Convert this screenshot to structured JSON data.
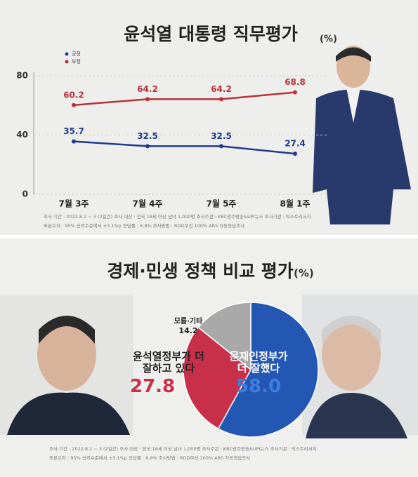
{
  "chart_data": [
    {
      "type": "line",
      "title": "윤석열 대통령 직무평가",
      "unit": "(%)",
      "categories": [
        "7월 3주",
        "7월 4주",
        "7월 5주",
        "8월 1주"
      ],
      "series": [
        {
          "name": "긍정",
          "color": "#1f3a8f",
          "values": [
            35.7,
            32.5,
            32.5,
            27.4
          ]
        },
        {
          "name": "부정",
          "color": "#b8323a",
          "values": [
            60.2,
            64.2,
            64.2,
            68.8
          ]
        }
      ],
      "ylim": [
        0,
        80
      ],
      "yticks": [
        0,
        40,
        80
      ],
      "grid": true,
      "notes": [
        "조사 기간 : 2022.8.2 ~ 3 (2일간)   조사 대상 : 전국 18세 이상 남녀 1,000명   조사주관 : KBC광주방송&UPI뉴스   조사기관 : 빅스트리서치",
        "표본오차 : 95% 신뢰수준에서 ±3.1%p   응답률 : 6.8%   조사방법 : RDD무선 100% ARS 자동응답조사"
      ]
    },
    {
      "type": "pie",
      "title": "경제·민생 정책 비교 평가",
      "unit": "(%)",
      "categories": [
        "문재인정부가 더 잘했다",
        "윤석열정부가 더 잘하고 있다",
        "모름·기타"
      ],
      "values": [
        58.0,
        27.8,
        14.2
      ],
      "value_labels": [
        "58.0",
        "27.8",
        "14.2"
      ],
      "colors": [
        "#2457b3",
        "#c8304a",
        "#a9a9a9"
      ],
      "notes": [
        "조사 기간 : 2022.8.2 ~ 3 (2일간)   조사 대상 : 전국 18세 이상 남녀 1,000명   조사주관 : KBC광주방송&UPI뉴스   조사기관 : 빅스트리서치",
        "표본오차 : 95% 신뢰수준에서 ±3.1%p   응답률 : 6.8%   조사방법 : RDD무선 100% ARS 자동응답조사"
      ]
    }
  ]
}
